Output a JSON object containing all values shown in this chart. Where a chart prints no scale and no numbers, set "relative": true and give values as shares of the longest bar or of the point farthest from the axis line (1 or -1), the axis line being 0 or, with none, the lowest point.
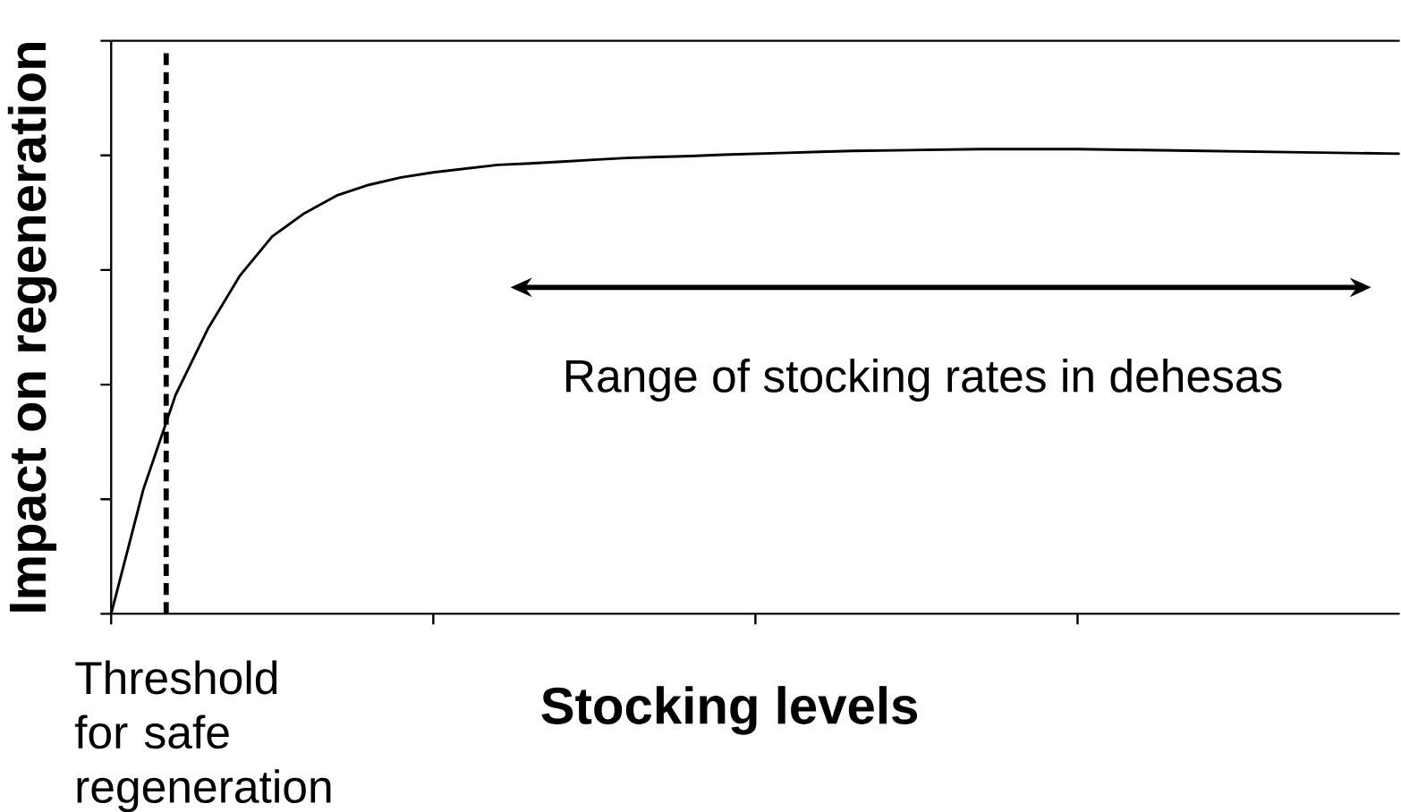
{
  "chart_data": {
    "type": "line",
    "relative": true,
    "xlabel": "Stocking levels",
    "ylabel": "Impact on regeneration",
    "categories": [
      null,
      null,
      null,
      null,
      null,
      null,
      null,
      null,
      null,
      null,
      null,
      null,
      null,
      null,
      null,
      null,
      null,
      null,
      null,
      null,
      null,
      null,
      null,
      null,
      null,
      null,
      null,
      null,
      null,
      null,
      null,
      null,
      null,
      null,
      null,
      null,
      null,
      null,
      null,
      null,
      null
    ],
    "series": [
      {
        "color": "#000000",
        "values": [
          0,
          0.268,
          0.471,
          0.613,
          0.728,
          0.812,
          0.862,
          0.9,
          0.923,
          0.939,
          0.95,
          0.958,
          0.966,
          0.969,
          0.973,
          0.977,
          0.981,
          0.983,
          0.985,
          0.988,
          0.99,
          0.992,
          0.994,
          0.996,
          0.997,
          0.998,
          0.999,
          1,
          1,
          1,
          1,
          0.999,
          0.998,
          0.997,
          0.996,
          0.995,
          0.994,
          0.993,
          0.992,
          0.991,
          0.99
        ]
      }
    ],
    "annotations": [
      "Range of stocking rates in dehesas",
      "Threshold for safe regeneration"
    ],
    "tick_labels": false,
    "grid": false,
    "marker": "none",
    "line_style": "solid"
  }
}
